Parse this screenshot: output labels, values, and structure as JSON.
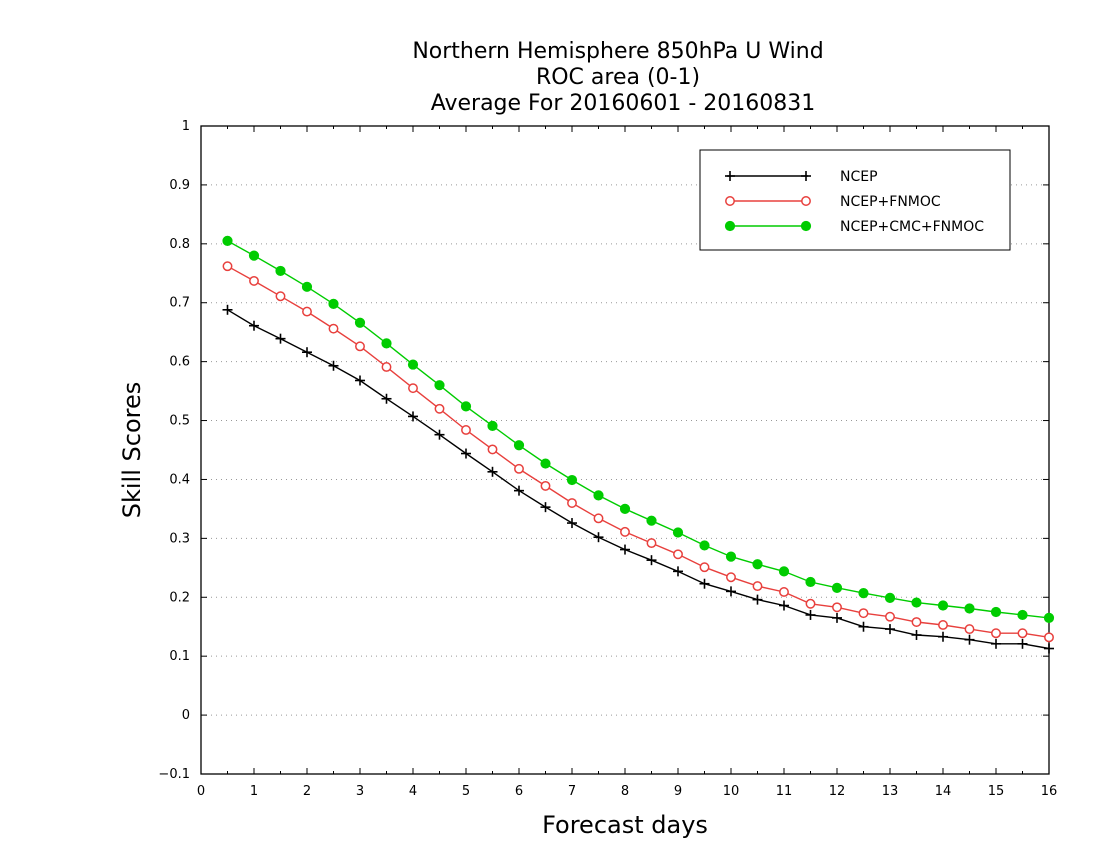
{
  "chart_data": {
    "type": "line",
    "title": [
      "Northern Hemisphere 850hPa U Wind",
      "ROC area (0-1)",
      "Average For 20160601 - 20160831"
    ],
    "xlabel": "Forecast days",
    "ylabel": "Skill Scores",
    "xlim": [
      0,
      16
    ],
    "ylim": [
      -0.1,
      1
    ],
    "xticks": [
      "0",
      "1",
      "2",
      "3",
      "4",
      "5",
      "6",
      "7",
      "8",
      "9",
      "10",
      "11",
      "12",
      "13",
      "14",
      "15",
      "16"
    ],
    "yticks": [
      "−0.1",
      "0",
      "0.1",
      "0.2",
      "0.3",
      "0.4",
      "0.5",
      "0.6",
      "0.7",
      "0.8",
      "0.9",
      "1"
    ],
    "grid": true,
    "legend_position": "top-right",
    "x": [
      0.5,
      1,
      1.5,
      2,
      2.5,
      3,
      3.5,
      4,
      4.5,
      5,
      5.5,
      6,
      6.5,
      7,
      7.5,
      8,
      8.5,
      9,
      9.5,
      10,
      10.5,
      11,
      11.5,
      12,
      12.5,
      13,
      13.5,
      14,
      14.5,
      15,
      15.5,
      16
    ],
    "series": [
      {
        "name": "NCEP",
        "color": "#000000",
        "marker": "plus",
        "values": [
          0.688,
          0.661,
          0.639,
          0.616,
          0.593,
          0.568,
          0.537,
          0.507,
          0.476,
          0.444,
          0.413,
          0.381,
          0.353,
          0.326,
          0.302,
          0.281,
          0.263,
          0.244,
          0.223,
          0.21,
          0.196,
          0.186,
          0.17,
          0.165,
          0.15,
          0.146,
          0.136,
          0.133,
          0.128,
          0.121,
          0.121,
          0.113
        ]
      },
      {
        "name": "NCEP+FNMOC",
        "color": "#e8403d",
        "marker": "open-circle",
        "values": [
          0.762,
          0.737,
          0.711,
          0.685,
          0.656,
          0.626,
          0.591,
          0.555,
          0.52,
          0.484,
          0.451,
          0.418,
          0.389,
          0.36,
          0.334,
          0.311,
          0.292,
          0.273,
          0.251,
          0.234,
          0.219,
          0.209,
          0.189,
          0.183,
          0.173,
          0.167,
          0.158,
          0.153,
          0.146,
          0.139,
          0.139,
          0.132
        ]
      },
      {
        "name": "NCEP+CMC+FNMOC",
        "color": "#00cc00",
        "marker": "filled-circle",
        "values": [
          0.805,
          0.78,
          0.754,
          0.727,
          0.698,
          0.666,
          0.631,
          0.595,
          0.56,
          0.524,
          0.491,
          0.458,
          0.427,
          0.399,
          0.373,
          0.35,
          0.33,
          0.31,
          0.288,
          0.269,
          0.256,
          0.244,
          0.226,
          0.216,
          0.207,
          0.199,
          0.191,
          0.186,
          0.181,
          0.175,
          0.17,
          0.165
        ]
      }
    ]
  }
}
